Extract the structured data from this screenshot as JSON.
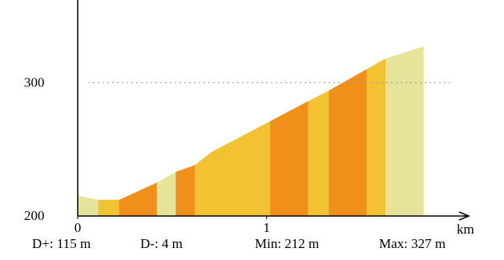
{
  "chart_data": {
    "type": "area",
    "x": [
      0,
      0.11,
      0.22,
      0.42,
      0.52,
      0.62,
      0.71,
      1.02,
      1.22,
      1.33,
      1.53,
      1.63,
      1.83
    ],
    "values": [
      215,
      212,
      212,
      225,
      233,
      238,
      248,
      271,
      286,
      294,
      310,
      318,
      327
    ],
    "segment_colors": [
      "#e6e39a",
      "#f2c232",
      "#f0901a",
      "#e6e39a",
      "#f0901a",
      "#f2c232",
      "#f2c232",
      "#f0901a",
      "#f2c232",
      "#f0901a",
      "#f2c232",
      "#e6e39a"
    ],
    "xlim": [
      0,
      2.07
    ],
    "ylim": [
      200,
      362
    ],
    "xticks": [
      0,
      1
    ],
    "yticks": [
      200,
      300
    ],
    "x_label": "km",
    "grid": true,
    "stats": [
      "D+: 115 m",
      "D-: 4 m",
      "Min: 212 m",
      "Max: 327 m"
    ]
  }
}
